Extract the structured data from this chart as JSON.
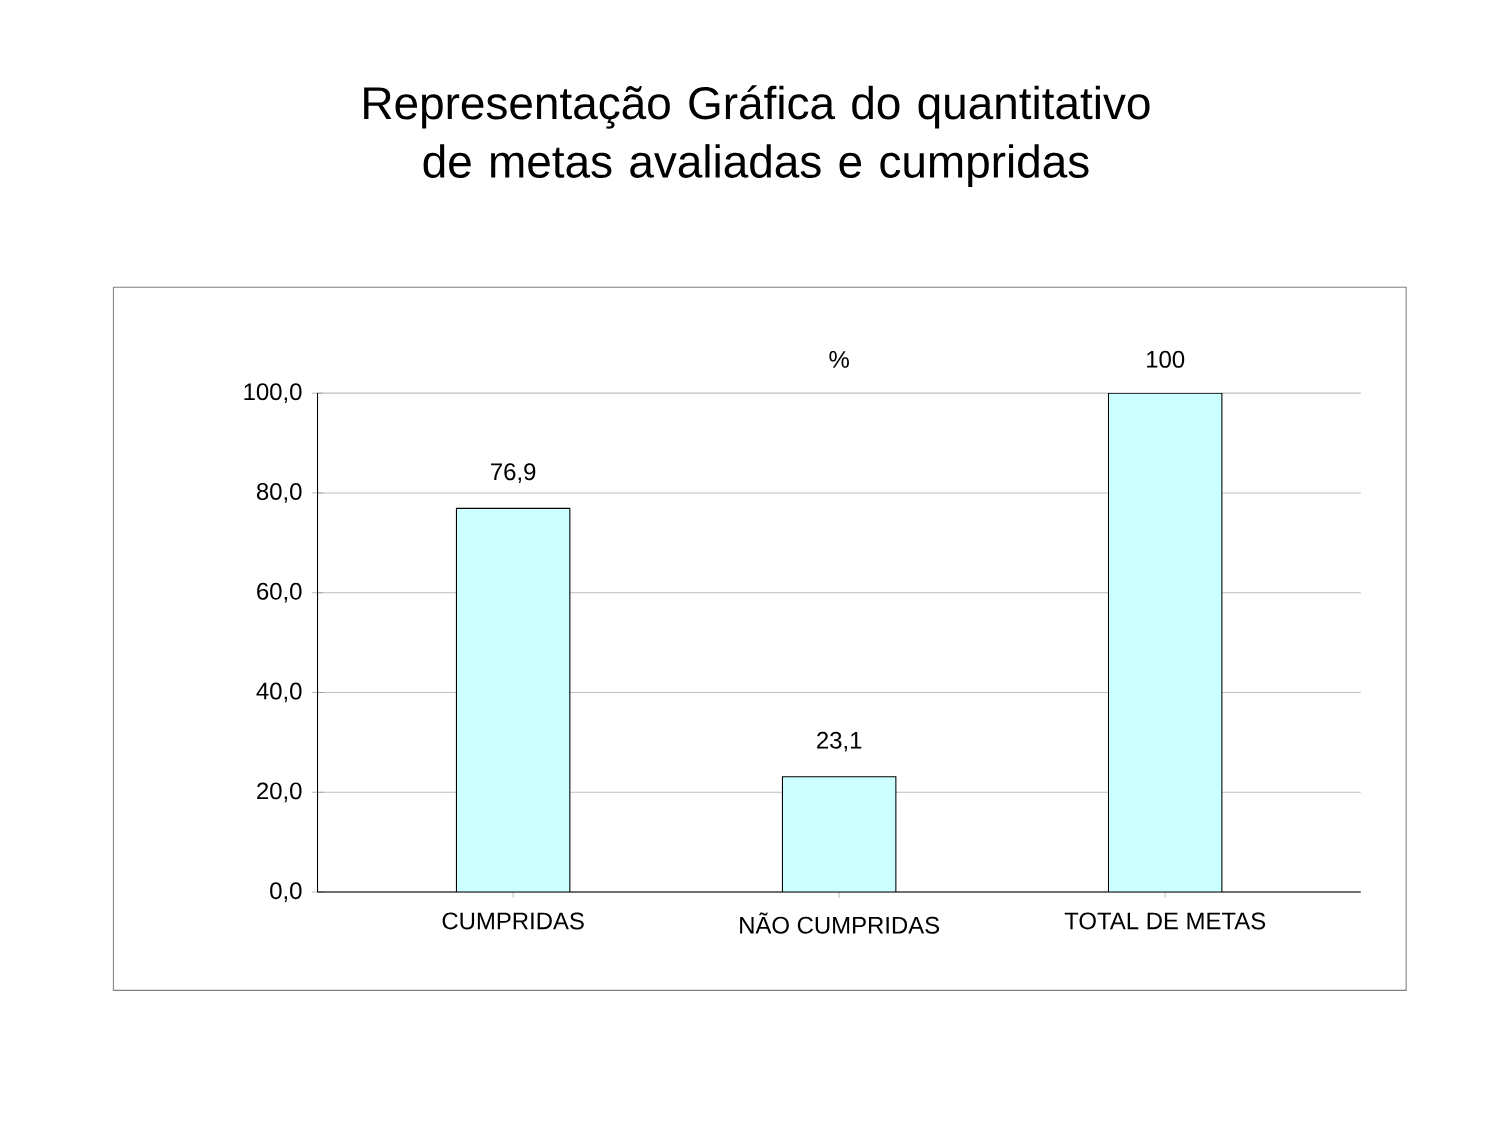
{
  "chart_data": {
    "type": "bar",
    "title": "Representação Gráfica do quantitativo de metas avaliadas e cumpridas",
    "subtitle": "%",
    "categories": [
      "CUMPRIDAS",
      "NÃO CUMPRIDAS",
      "TOTAL DE METAS"
    ],
    "values": [
      76.9,
      23.1,
      100
    ],
    "color": "#ccffff",
    "value_labels": [
      "76,9",
      "23,1",
      "100"
    ],
    "ylim": [
      0,
      100
    ],
    "yticks": [
      {
        "value": 0,
        "label": "0,0"
      },
      {
        "value": 20,
        "label": "20,0"
      },
      {
        "value": 40,
        "label": "40,0"
      },
      {
        "value": 60,
        "label": "60,0"
      },
      {
        "value": 80,
        "label": "80,0"
      },
      {
        "value": 100,
        "label": "100,0"
      }
    ],
    "grid": "y"
  }
}
